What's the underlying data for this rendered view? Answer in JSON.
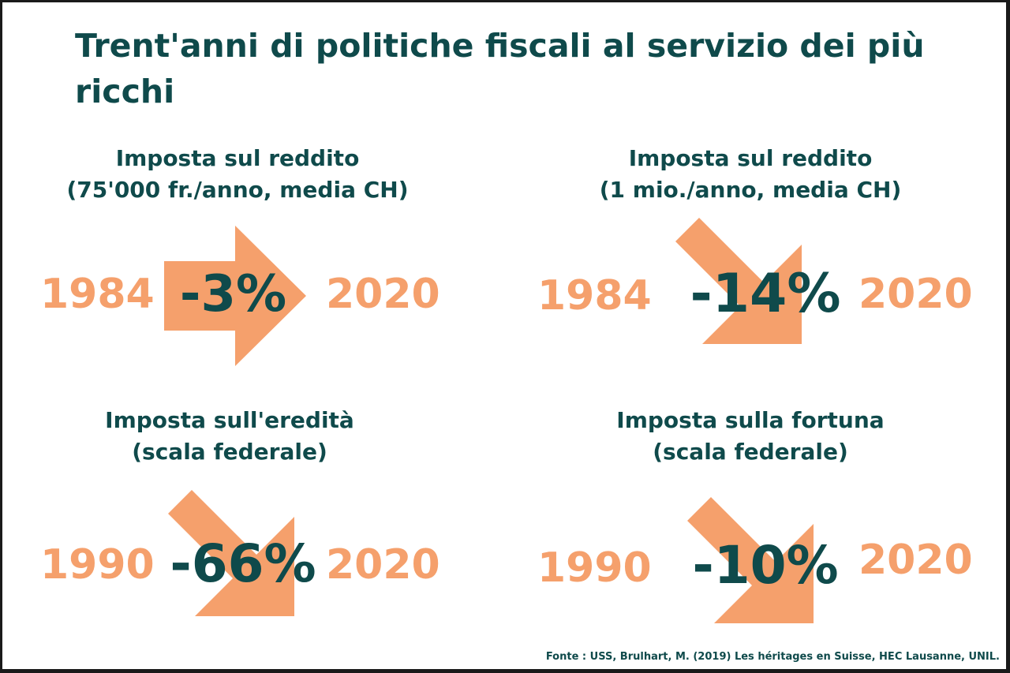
{
  "title": "Trent'anni di politiche fiscali al servizio dei più ricchi",
  "colors": {
    "accent": "#f5a06c",
    "text": "#0f4a4b",
    "border": "#1a1a1a"
  },
  "panels": [
    {
      "heading_line1": "Imposta sul reddito",
      "heading_line2": "(75'000 fr./anno, media CH)",
      "year_start": "1984",
      "change": "-3%",
      "year_end": "2020",
      "arrow": "right-arrow-icon"
    },
    {
      "heading_line1": "Imposta sul reddito",
      "heading_line2": "(1 mio./anno, media CH)",
      "year_start": "1984",
      "change": "-14%",
      "year_end": "2020",
      "arrow": "down-right-arrow-icon"
    },
    {
      "heading_line1": "Imposta sull'eredità",
      "heading_line2": "(scala federale)",
      "year_start": "1990",
      "change": "-66%",
      "year_end": "2020",
      "arrow": "down-right-arrow-icon"
    },
    {
      "heading_line1": "Imposta sulla fortuna",
      "heading_line2": "(scala federale)",
      "year_start": "1990",
      "change": "-10%",
      "year_end": "2020",
      "arrow": "down-right-arrow-icon"
    }
  ],
  "source": "Fonte : USS, Brulhart, M. (2019) Les héritages en Suisse, HEC Lausanne, UNIL."
}
